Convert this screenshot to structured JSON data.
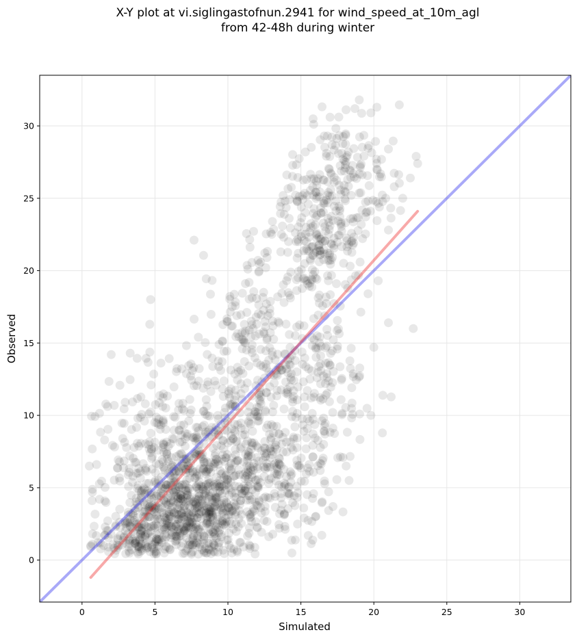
{
  "chart_data": {
    "type": "scatter",
    "title_line1": "X-Y plot at vi.siglingastofnun.2941 for wind_speed_at_10m_agl",
    "title_line2": "from 42-48h during winter",
    "xlabel": "Simulated",
    "ylabel": "Observed",
    "xlim": [
      -2.9,
      33.5
    ],
    "ylim": [
      -2.9,
      33.5
    ],
    "xticks": [
      0,
      5,
      10,
      15,
      20,
      25,
      30
    ],
    "yticks": [
      0,
      5,
      10,
      15,
      20,
      25,
      30
    ],
    "grid": true,
    "point_color": "#000000",
    "point_opacity": 0.09,
    "fit_line": {
      "x": [
        0.6,
        23.0
      ],
      "y": [
        -1.2,
        24.1
      ],
      "color": "#ee3333"
    },
    "identity_line": {
      "x": [
        -2.9,
        33.5
      ],
      "y": [
        -2.9,
        33.5
      ],
      "color": "#3333ee"
    },
    "clusters": [
      {
        "cx": 7.5,
        "cy": 3.5,
        "sx": 2.2,
        "sy": 1.8,
        "n": 520
      },
      {
        "cx": 5.5,
        "cy": 7.5,
        "sx": 2.2,
        "sy": 3.2,
        "n": 260
      },
      {
        "cx": 10.0,
        "cy": 7.0,
        "sx": 2.5,
        "sy": 3.5,
        "n": 300
      },
      {
        "cx": 13.5,
        "cy": 6.5,
        "sx": 2.0,
        "sy": 2.8,
        "n": 180
      },
      {
        "cx": 12.5,
        "cy": 15.0,
        "sx": 2.2,
        "sy": 3.0,
        "n": 220
      },
      {
        "cx": 16.0,
        "cy": 22.5,
        "sx": 1.6,
        "sy": 2.2,
        "n": 200
      },
      {
        "cx": 18.5,
        "cy": 26.0,
        "sx": 1.7,
        "sy": 2.6,
        "n": 150
      },
      {
        "cx": 16.5,
        "cy": 12.5,
        "sx": 1.8,
        "sy": 3.0,
        "n": 120
      },
      {
        "cx": 3.5,
        "cy": 1.8,
        "sx": 1.3,
        "sy": 1.2,
        "n": 120
      }
    ],
    "extra_points": [
      [
        4.7,
        18.0
      ],
      [
        2.0,
        14.2
      ],
      [
        3.3,
        14.3
      ],
      [
        1.0,
        6.6
      ],
      [
        0.5,
        6.5
      ],
      [
        1.2,
        4.2
      ],
      [
        21.0,
        16.4
      ],
      [
        22.7,
        16.0
      ],
      [
        20.0,
        14.7
      ],
      [
        19.8,
        10.0
      ],
      [
        18.3,
        5.5
      ],
      [
        19.0,
        31.8
      ],
      [
        18.7,
        31.2
      ],
      [
        19.8,
        30.9
      ],
      [
        22.9,
        27.9
      ],
      [
        23.0,
        27.4
      ],
      [
        22.5,
        26.4
      ],
      [
        21.4,
        25.8
      ],
      [
        21.0,
        22.8
      ],
      [
        20.3,
        19.3
      ],
      [
        19.6,
        18.4
      ],
      [
        17.0,
        30.6
      ],
      [
        16.6,
        29.3
      ],
      [
        21.0,
        28.4
      ],
      [
        7.5,
        0.4
      ],
      [
        9.0,
        0.6
      ],
      [
        11.5,
        0.8
      ],
      [
        2.5,
        1.0
      ],
      [
        0.6,
        1.0
      ],
      [
        17.2,
        3.7
      ],
      [
        16.0,
        3.0
      ],
      [
        15.5,
        1.7
      ]
    ]
  }
}
